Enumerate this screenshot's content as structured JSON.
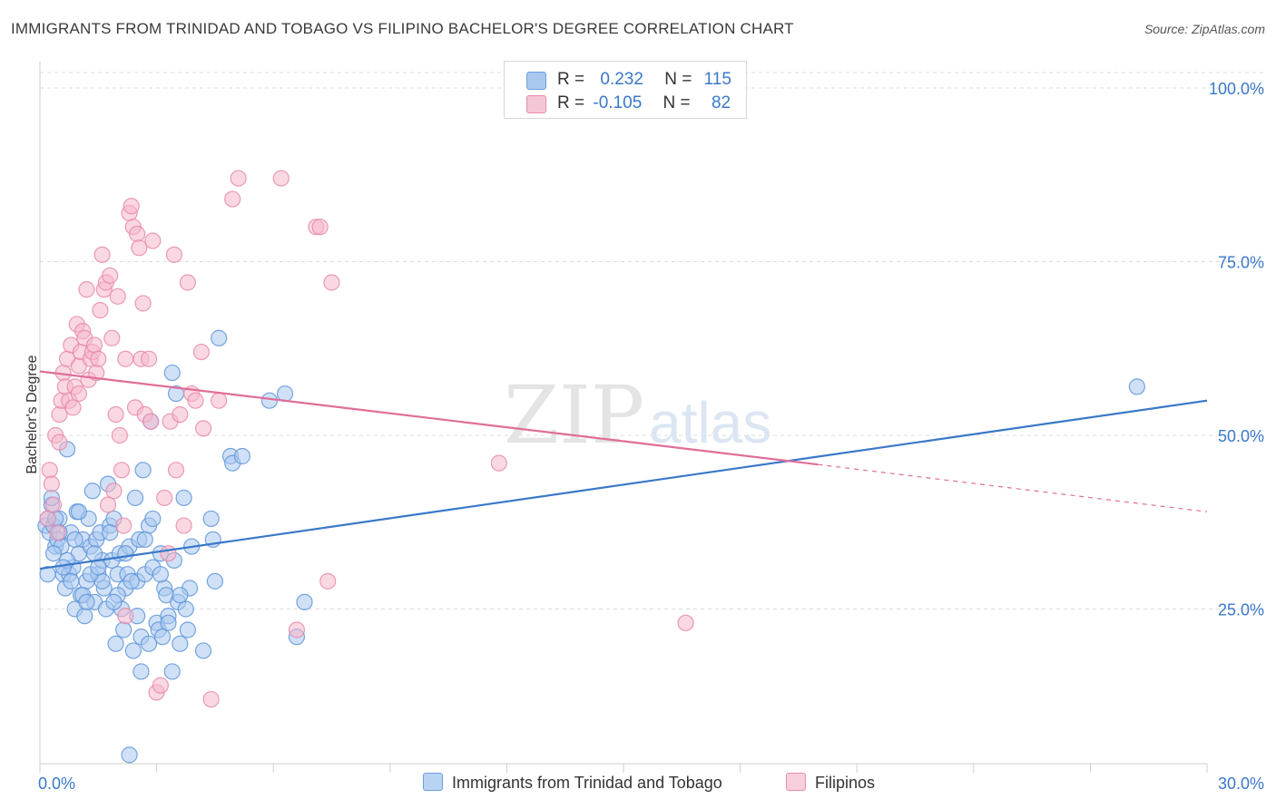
{
  "title": "IMMIGRANTS FROM TRINIDAD AND TOBAGO VS FILIPINO BACHELOR'S DEGREE CORRELATION CHART",
  "source": "Source: ZipAtlas.com",
  "watermark": {
    "zip": "ZIP",
    "atlas": "atlas"
  },
  "legend": {
    "rows": [
      {
        "r_label": "R =",
        "r_value": "0.232",
        "n_label": "N =",
        "n_value": "115"
      },
      {
        "r_label": "R =",
        "r_value": "-0.105",
        "n_label": "N =",
        "n_value": "82"
      }
    ]
  },
  "bottom_legend": {
    "series1": "Immigrants from Trinidad and Tobago",
    "series2": "Filipinos"
  },
  "colors": {
    "blue": "#3a78c9",
    "blue_fill": "#a9c8f0",
    "pink": "#e06e98",
    "pink_fill": "#f5b8cb",
    "grid": "#dcdcdc",
    "tick_text": "#3a78c9"
  },
  "chart_data": {
    "type": "scatter",
    "title": "IMMIGRANTS FROM TRINIDAD AND TOBAGO VS FILIPINO BACHELOR'S DEGREE CORRELATION CHART",
    "xlabel": "",
    "ylabel": "Bachelor's Degree",
    "xlim": [
      0,
      30
    ],
    "ylim": [
      0,
      100
    ],
    "x_tick_labels": [
      "0.0%",
      "30.0%"
    ],
    "y_ticks": [
      25,
      50,
      75,
      100
    ],
    "y_tick_labels": [
      "25.0%",
      "50.0%",
      "75.0%",
      "100.0%"
    ],
    "series": [
      {
        "name": "Immigrants from Trinidad and Tobago",
        "color": "#3a78c9",
        "R": 0.232,
        "N": 115,
        "trend": {
          "x0": 0,
          "y0": 30.8,
          "x1": 30,
          "y1": 55.0
        },
        "points": [
          [
            0.15,
            37
          ],
          [
            0.2,
            38
          ],
          [
            0.25,
            36
          ],
          [
            0.3,
            40
          ],
          [
            0.35,
            37
          ],
          [
            0.4,
            34
          ],
          [
            0.45,
            35
          ],
          [
            0.5,
            38
          ],
          [
            0.55,
            34
          ],
          [
            0.6,
            30
          ],
          [
            0.65,
            28
          ],
          [
            0.7,
            48
          ],
          [
            0.75,
            30
          ],
          [
            0.8,
            36
          ],
          [
            0.85,
            31
          ],
          [
            0.9,
            25
          ],
          [
            0.95,
            39
          ],
          [
            1.0,
            33
          ],
          [
            1.05,
            27
          ],
          [
            1.1,
            35
          ],
          [
            1.15,
            24
          ],
          [
            1.2,
            29
          ],
          [
            1.25,
            38
          ],
          [
            1.3,
            34
          ],
          [
            1.35,
            42
          ],
          [
            1.4,
            26
          ],
          [
            1.45,
            35
          ],
          [
            1.5,
            30
          ],
          [
            1.55,
            36
          ],
          [
            1.6,
            32
          ],
          [
            1.65,
            28
          ],
          [
            1.7,
            25
          ],
          [
            1.75,
            43
          ],
          [
            1.8,
            37
          ],
          [
            1.85,
            32
          ],
          [
            1.9,
            38
          ],
          [
            1.95,
            20
          ],
          [
            2.0,
            30
          ],
          [
            2.05,
            33
          ],
          [
            2.1,
            25
          ],
          [
            2.15,
            22
          ],
          [
            2.2,
            28
          ],
          [
            2.25,
            30
          ],
          [
            2.3,
            34
          ],
          [
            2.4,
            19
          ],
          [
            2.45,
            41
          ],
          [
            2.5,
            29
          ],
          [
            2.55,
            35
          ],
          [
            2.6,
            21
          ],
          [
            2.65,
            45
          ],
          [
            2.7,
            30
          ],
          [
            2.8,
            37
          ],
          [
            2.85,
            52
          ],
          [
            2.9,
            31
          ],
          [
            3.0,
            23
          ],
          [
            3.05,
            22
          ],
          [
            3.1,
            33
          ],
          [
            3.15,
            21
          ],
          [
            3.2,
            28
          ],
          [
            3.25,
            27
          ],
          [
            3.3,
            24
          ],
          [
            3.4,
            59
          ],
          [
            3.45,
            32
          ],
          [
            3.5,
            56
          ],
          [
            3.55,
            26
          ],
          [
            3.6,
            20
          ],
          [
            3.7,
            41
          ],
          [
            3.75,
            25
          ],
          [
            3.8,
            22
          ],
          [
            3.85,
            28
          ],
          [
            3.9,
            34
          ],
          [
            4.4,
            38
          ],
          [
            4.45,
            35
          ],
          [
            4.6,
            64
          ],
          [
            4.9,
            47
          ],
          [
            4.95,
            46
          ],
          [
            5.2,
            47
          ],
          [
            5.9,
            55
          ],
          [
            6.3,
            56
          ],
          [
            6.8,
            26
          ],
          [
            6.6,
            21
          ],
          [
            28.2,
            57
          ],
          [
            0.2,
            30
          ],
          [
            0.4,
            38
          ],
          [
            0.9,
            35
          ],
          [
            1.1,
            27
          ],
          [
            2.6,
            16
          ],
          [
            3.4,
            16
          ],
          [
            2.3,
            4
          ],
          [
            0.3,
            41
          ],
          [
            1.0,
            39
          ],
          [
            1.6,
            29
          ],
          [
            2.0,
            27
          ],
          [
            2.9,
            38
          ],
          [
            3.6,
            27
          ],
          [
            0.5,
            36
          ],
          [
            0.7,
            32
          ],
          [
            1.3,
            30
          ],
          [
            1.8,
            36
          ],
          [
            2.2,
            33
          ],
          [
            2.7,
            35
          ],
          [
            3.1,
            30
          ],
          [
            0.6,
            31
          ],
          [
            1.4,
            33
          ],
          [
            2.5,
            24
          ],
          [
            3.3,
            23
          ],
          [
            0.8,
            29
          ],
          [
            1.9,
            26
          ],
          [
            2.8,
            20
          ],
          [
            4.2,
            19
          ],
          [
            4.5,
            29
          ],
          [
            1.2,
            26
          ],
          [
            0.35,
            33
          ],
          [
            1.5,
            31
          ],
          [
            2.35,
            29
          ]
        ]
      },
      {
        "name": "Filipinos",
        "color": "#e06e98",
        "R": -0.105,
        "N": 82,
        "trend": {
          "x0": 0,
          "y0": 59.2,
          "x1": 20.0,
          "y1": 45.8,
          "dash_to": {
            "x": 30,
            "y": 39.0
          }
        },
        "points": [
          [
            0.2,
            38
          ],
          [
            0.25,
            45
          ],
          [
            0.3,
            43
          ],
          [
            0.35,
            40
          ],
          [
            0.4,
            50
          ],
          [
            0.45,
            36
          ],
          [
            0.5,
            53
          ],
          [
            0.55,
            55
          ],
          [
            0.6,
            59
          ],
          [
            0.65,
            57
          ],
          [
            0.7,
            61
          ],
          [
            0.75,
            55
          ],
          [
            0.8,
            63
          ],
          [
            0.85,
            54
          ],
          [
            0.9,
            57
          ],
          [
            0.95,
            66
          ],
          [
            1.0,
            60
          ],
          [
            1.05,
            62
          ],
          [
            1.1,
            65
          ],
          [
            1.15,
            64
          ],
          [
            1.2,
            71
          ],
          [
            1.25,
            58
          ],
          [
            1.3,
            61
          ],
          [
            1.35,
            62
          ],
          [
            1.4,
            63
          ],
          [
            1.45,
            59
          ],
          [
            1.5,
            61
          ],
          [
            1.55,
            68
          ],
          [
            1.6,
            76
          ],
          [
            1.65,
            71
          ],
          [
            1.7,
            72
          ],
          [
            1.75,
            40
          ],
          [
            1.8,
            73
          ],
          [
            1.85,
            64
          ],
          [
            1.9,
            42
          ],
          [
            1.95,
            53
          ],
          [
            2.0,
            70
          ],
          [
            2.05,
            50
          ],
          [
            2.1,
            45
          ],
          [
            2.15,
            37
          ],
          [
            2.2,
            24
          ],
          [
            2.3,
            82
          ],
          [
            2.35,
            83
          ],
          [
            2.4,
            80
          ],
          [
            2.45,
            54
          ],
          [
            2.5,
            79
          ],
          [
            2.55,
            77
          ],
          [
            2.6,
            61
          ],
          [
            2.65,
            69
          ],
          [
            2.7,
            53
          ],
          [
            2.8,
            61
          ],
          [
            2.85,
            52
          ],
          [
            2.9,
            78
          ],
          [
            3.0,
            13
          ],
          [
            3.1,
            14
          ],
          [
            3.2,
            41
          ],
          [
            3.3,
            33
          ],
          [
            3.35,
            52
          ],
          [
            3.45,
            76
          ],
          [
            3.5,
            45
          ],
          [
            3.6,
            53
          ],
          [
            3.7,
            37
          ],
          [
            3.8,
            72
          ],
          [
            3.9,
            56
          ],
          [
            4.0,
            55
          ],
          [
            4.15,
            62
          ],
          [
            4.2,
            51
          ],
          [
            4.4,
            12
          ],
          [
            4.6,
            55
          ],
          [
            4.95,
            84
          ],
          [
            5.1,
            87
          ],
          [
            6.2,
            87
          ],
          [
            7.1,
            80
          ],
          [
            7.2,
            80
          ],
          [
            7.5,
            72
          ],
          [
            7.4,
            29
          ],
          [
            6.6,
            22
          ],
          [
            11.8,
            46
          ],
          [
            16.6,
            23
          ],
          [
            0.5,
            49
          ],
          [
            1.0,
            56
          ],
          [
            2.2,
            61
          ]
        ]
      }
    ]
  }
}
